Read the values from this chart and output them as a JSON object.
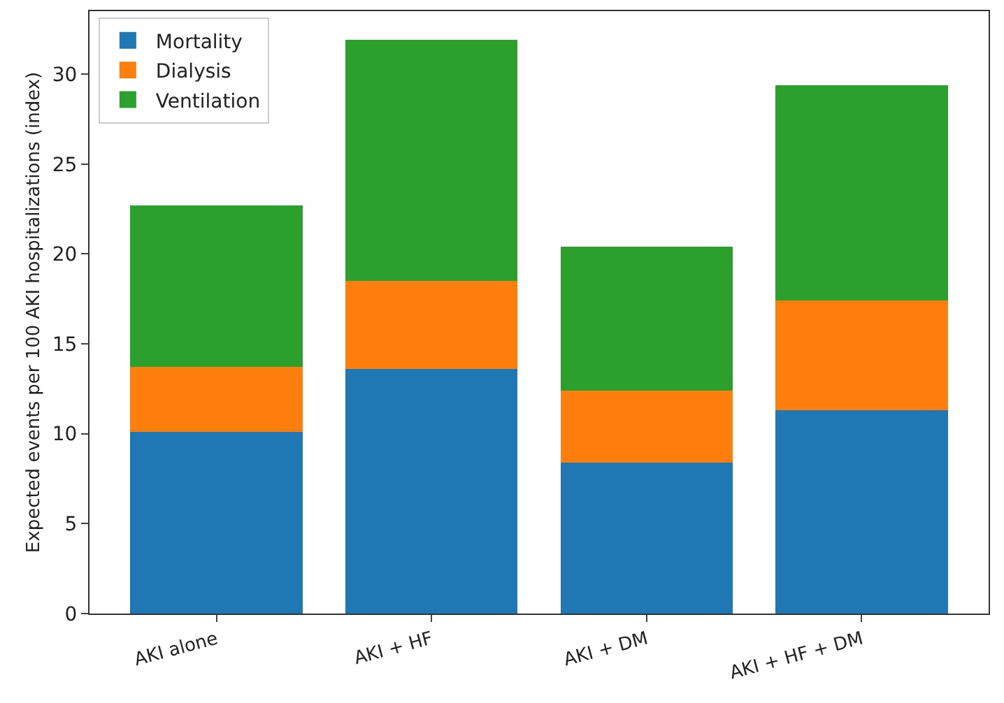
{
  "chart_data": {
    "type": "bar",
    "stacked": true,
    "ylabel": "Expected events per 100 AKI hospitalizations (index)",
    "categories": [
      "AKI alone",
      "AKI + HF",
      "AKI + DM",
      "AKI + HF + DM"
    ],
    "series": [
      {
        "name": "Mortality",
        "color": "#1f77b4",
        "values": [
          10.1,
          13.6,
          8.4,
          11.3
        ]
      },
      {
        "name": "Dialysis",
        "color": "#ff7f0e",
        "values": [
          3.6,
          4.9,
          4.0,
          6.1
        ]
      },
      {
        "name": "Ventilation",
        "color": "#2ca02c",
        "values": [
          9.0,
          13.4,
          8.0,
          12.0
        ]
      }
    ],
    "ylim": [
      0,
      33.5
    ],
    "yticks": [
      0,
      5,
      10,
      15,
      20,
      25,
      30
    ],
    "grid": false,
    "legend": "top left"
  }
}
